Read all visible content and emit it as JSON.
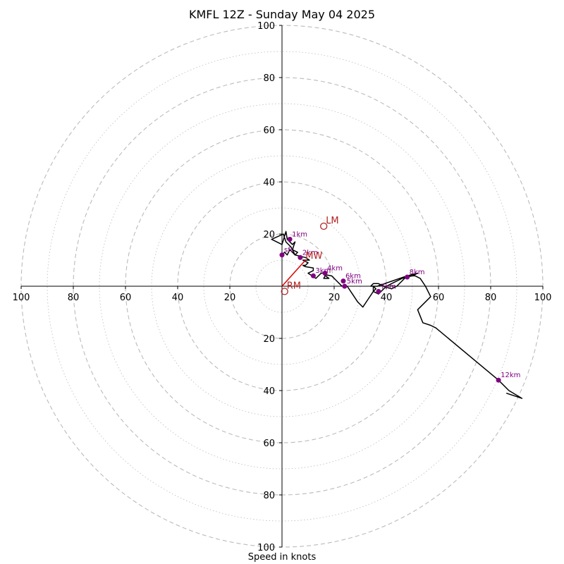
{
  "chart_data": {
    "type": "hodograph",
    "title": "KMFL 12Z - Sunday May 04 2025",
    "xlabel": "Speed in knots",
    "units": "knots",
    "axis_range": [
      -100,
      100
    ],
    "ring_major_step": 20,
    "ring_minor_step": 10,
    "tick_labels": {
      "x": [
        "100",
        "80",
        "60",
        "40",
        "20",
        "20",
        "40",
        "60",
        "80",
        "100"
      ],
      "y_top": [
        "100",
        "80",
        "60",
        "40",
        "20"
      ],
      "y_bottom": [
        "20",
        "40",
        "60",
        "80",
        "100"
      ]
    },
    "colors": {
      "trace": "#000000",
      "height_marker": "#800080",
      "motion": "#b22222",
      "mean_wind_vector": "#dd0000",
      "grid": "#bbbbbb"
    },
    "trace": [
      [
        0,
        12
      ],
      [
        1,
        13
      ],
      [
        2,
        12
      ],
      [
        3,
        14
      ],
      [
        4,
        13
      ],
      [
        5,
        12
      ],
      [
        3.5,
        15
      ],
      [
        1.5,
        17
      ],
      [
        0.5,
        20
      ],
      [
        -4,
        18
      ],
      [
        0,
        16
      ],
      [
        1.5,
        21
      ],
      [
        2,
        18
      ],
      [
        4,
        16
      ],
      [
        5,
        17
      ],
      [
        4,
        14
      ],
      [
        6,
        13
      ],
      [
        5,
        12
      ],
      [
        9,
        11
      ],
      [
        10.5,
        10
      ],
      [
        8,
        10
      ],
      [
        10,
        9
      ],
      [
        9,
        8
      ],
      [
        8,
        8
      ],
      [
        9,
        7.5
      ],
      [
        12,
        7
      ],
      [
        12,
        6
      ],
      [
        10,
        5
      ],
      [
        13,
        3
      ],
      [
        15,
        5
      ],
      [
        16,
        5
      ],
      [
        16.5,
        4
      ],
      [
        16,
        3
      ],
      [
        18,
        3
      ],
      [
        16,
        4.5
      ],
      [
        19,
        4
      ],
      [
        20,
        3
      ],
      [
        21,
        2
      ],
      [
        22,
        1
      ],
      [
        23,
        0
      ],
      [
        25,
        0
      ],
      [
        27,
        -3
      ],
      [
        29,
        -6
      ],
      [
        31,
        -8
      ],
      [
        33,
        -5
      ],
      [
        35,
        -2
      ],
      [
        36,
        -1
      ],
      [
        35,
        0
      ],
      [
        34,
        0
      ],
      [
        35,
        1
      ],
      [
        37,
        1
      ],
      [
        39,
        0
      ],
      [
        42,
        -1
      ],
      [
        44,
        0
      ],
      [
        46,
        2
      ],
      [
        48,
        4
      ],
      [
        50,
        4
      ],
      [
        51,
        4.5
      ],
      [
        52,
        5
      ],
      [
        48,
        4
      ],
      [
        36.5,
        0
      ],
      [
        35,
        0
      ],
      [
        35,
        -2
      ],
      [
        37,
        -3
      ],
      [
        38,
        -2
      ],
      [
        39,
        -1
      ],
      [
        40,
        0
      ],
      [
        42,
        1
      ],
      [
        46,
        3
      ],
      [
        50,
        4
      ],
      [
        51,
        4
      ],
      [
        53,
        3
      ],
      [
        55,
        0
      ],
      [
        57,
        -4
      ],
      [
        52,
        -9
      ],
      [
        54,
        -14
      ],
      [
        57,
        -15
      ],
      [
        59,
        -16
      ],
      [
        83,
        -36
      ],
      [
        87,
        -40
      ],
      [
        92,
        -43
      ],
      [
        86,
        -41
      ]
    ],
    "height_markers": [
      {
        "label": "sfc",
        "u": 0,
        "v": 12
      },
      {
        "label": "1km",
        "u": 3,
        "v": 18
      },
      {
        "label": "2km",
        "u": 7,
        "v": 11
      },
      {
        "label": "3km",
        "u": 12,
        "v": 4
      },
      {
        "label": "4km",
        "u": 16.5,
        "v": 5
      },
      {
        "label": "5km",
        "u": 24,
        "v": 0
      },
      {
        "label": "6km",
        "u": 23.5,
        "v": 2
      },
      {
        "label": "7km",
        "u": 37,
        "v": -2
      },
      {
        "label": "8km",
        "u": 48,
        "v": 3.5
      },
      {
        "label": "12km",
        "u": 83,
        "v": -36
      }
    ],
    "storm_motion": {
      "RM": {
        "label": "RM",
        "u": 1,
        "v": -2
      },
      "LM": {
        "label": "LM",
        "u": 16,
        "v": 23
      },
      "MW": {
        "label": "MW",
        "u": 9,
        "v": 10
      }
    }
  }
}
